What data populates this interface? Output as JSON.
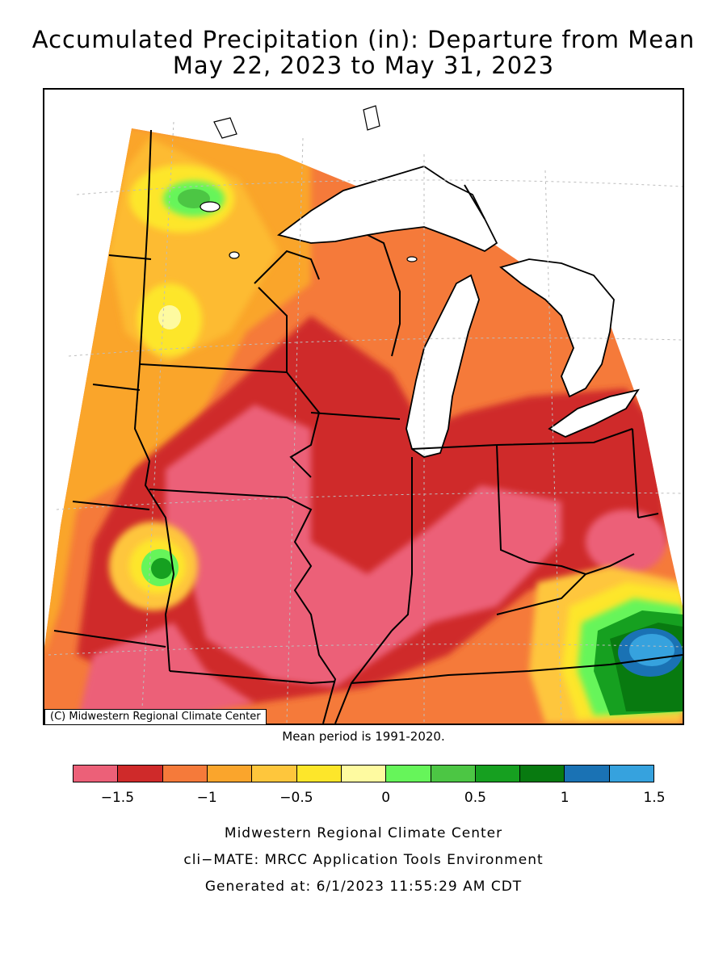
{
  "title_line1": "Accumulated Precipitation (in): Departure from Mean",
  "title_line2": "May 22, 2023 to May 31, 2023",
  "credit_box": "(C) Midwestern Regional Climate Center",
  "mean_period": "Mean period is 1991-2020.",
  "legend": {
    "bins": [
      {
        "from": -1.75,
        "to": -1.5,
        "color": "#ec6078"
      },
      {
        "from": -1.5,
        "to": -1.25,
        "color": "#cf2a2a"
      },
      {
        "from": -1.25,
        "to": -1.0,
        "color": "#f57a3a"
      },
      {
        "from": -1.0,
        "to": -0.75,
        "color": "#faa52c"
      },
      {
        "from": -0.75,
        "to": -0.5,
        "color": "#fec63c"
      },
      {
        "from": -0.5,
        "to": -0.25,
        "color": "#fde62a"
      },
      {
        "from": -0.25,
        "to": 0.0,
        "color": "#fefaa0"
      },
      {
        "from": 0.0,
        "to": 0.25,
        "color": "#66f55a"
      },
      {
        "from": 0.25,
        "to": 0.5,
        "color": "#4cc644"
      },
      {
        "from": 0.5,
        "to": 0.75,
        "color": "#16a020"
      },
      {
        "from": 0.75,
        "to": 1.0,
        "color": "#087a10"
      },
      {
        "from": 1.0,
        "to": 1.25,
        "color": "#1a72b4"
      },
      {
        "from": 1.25,
        "to": 1.5,
        "color": "#36a2de"
      }
    ],
    "ticks": [
      {
        "value": -1.5,
        "label": "−1.5"
      },
      {
        "value": -1.0,
        "label": "−1"
      },
      {
        "value": -0.5,
        "label": "−0.5"
      },
      {
        "value": 0.0,
        "label": "0"
      },
      {
        "value": 0.5,
        "label": "0.5"
      },
      {
        "value": 1.0,
        "label": "1"
      },
      {
        "value": 1.5,
        "label": "1.5"
      }
    ]
  },
  "footer": {
    "line1": "Midwestern Regional Climate Center",
    "line2": "cli−MATE: MRCC Application Tools Environment",
    "line3": "Generated at: 6/1/2023 11:55:29 AM CDT"
  },
  "colors": {
    "lake": "#ffffff",
    "border": "#000000",
    "grid": "#bdbdbd"
  }
}
